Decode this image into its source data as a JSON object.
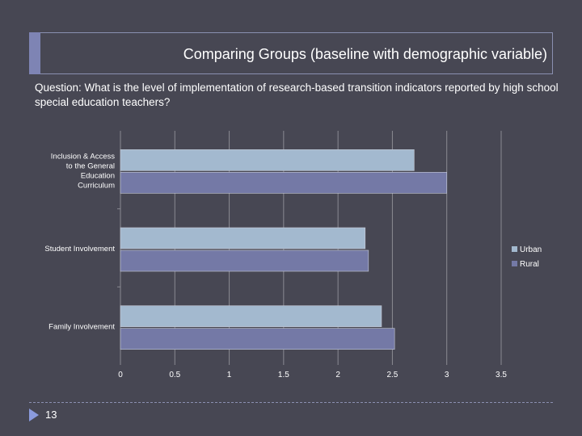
{
  "slide": {
    "title": "Comparing Groups (baseline with demographic variable)",
    "question": "Question:  What is the level of implementation of research-based transition indicators reported by high school special education teachers?",
    "page_number": "13"
  },
  "colors": {
    "urban": "#a3b9cf",
    "rural": "#7479a6",
    "grid": "#8a8a92",
    "text": "#ffffff"
  },
  "chart_data": {
    "type": "bar",
    "orientation": "horizontal",
    "categories": [
      [
        "Inclusion & Access",
        "to the General",
        "Education",
        "Curriculum"
      ],
      [
        "Student Involvement"
      ],
      [
        "Family Involvement"
      ]
    ],
    "series": [
      {
        "name": "Urban",
        "values": [
          2.7,
          2.25,
          2.4
        ]
      },
      {
        "name": "Rural",
        "values": [
          3.0,
          2.28,
          2.52
        ]
      }
    ],
    "xlim": [
      0,
      3.5
    ],
    "xticks": [
      "0",
      "0.5",
      "1",
      "1.5",
      "2",
      "2.5",
      "3",
      "3.5"
    ],
    "grid": true,
    "legend": "right"
  }
}
